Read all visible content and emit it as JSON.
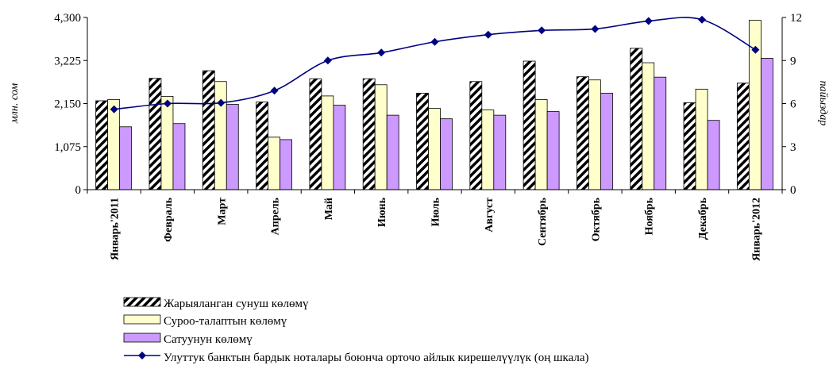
{
  "chart_data": {
    "type": "bar",
    "categories": [
      "Январь'2011",
      "Февраль",
      "Март",
      "Апрель",
      "Май",
      "Июнь",
      "Июль",
      "Август",
      "Сентябрь",
      "Октябрь",
      "Ноябрь",
      "Декабрь",
      "Январь'2012"
    ],
    "ylabel": "млн. сом",
    "y2label": "пайыздар",
    "ylim": [
      0,
      4300
    ],
    "y2lim": [
      0,
      12
    ],
    "yticks": [
      "0",
      "1,075",
      "2,150",
      "3,225",
      "4,300"
    ],
    "y2ticks": [
      "0",
      "3",
      "6",
      "9",
      "12"
    ],
    "legend_position": "bottom",
    "grid": false,
    "series": [
      {
        "name": "Жарыяланган сунуш көлөмү",
        "type": "bar",
        "pattern": "diagonal-hatch",
        "color": "#000000",
        "values": [
          2220,
          2780,
          2970,
          2190,
          2770,
          2770,
          2410,
          2700,
          3210,
          2820,
          3530,
          2170,
          2660
        ]
      },
      {
        "name": "Суроо-талаптын көлөмү",
        "type": "bar",
        "color": "#ffffcc",
        "values": [
          2250,
          2330,
          2700,
          1310,
          2340,
          2620,
          2030,
          1990,
          2250,
          2740,
          3170,
          2510,
          4230
        ]
      },
      {
        "name": "Сатуунун көлөмү",
        "type": "bar",
        "color": "#cc99ff",
        "values": [
          1570,
          1650,
          2130,
          1250,
          2110,
          1860,
          1770,
          1860,
          1950,
          2410,
          2810,
          1730,
          3280
        ]
      },
      {
        "name": "Улуттук банктын бардык ноталары боюнча орточо айлык кирешелүүлүк (оң шкала)",
        "type": "line",
        "axis": "right",
        "color": "#000080",
        "values": [
          5.6,
          6.0,
          6.05,
          6.9,
          9.0,
          9.55,
          10.3,
          10.8,
          11.1,
          11.2,
          11.75,
          11.85,
          9.75
        ]
      }
    ]
  }
}
